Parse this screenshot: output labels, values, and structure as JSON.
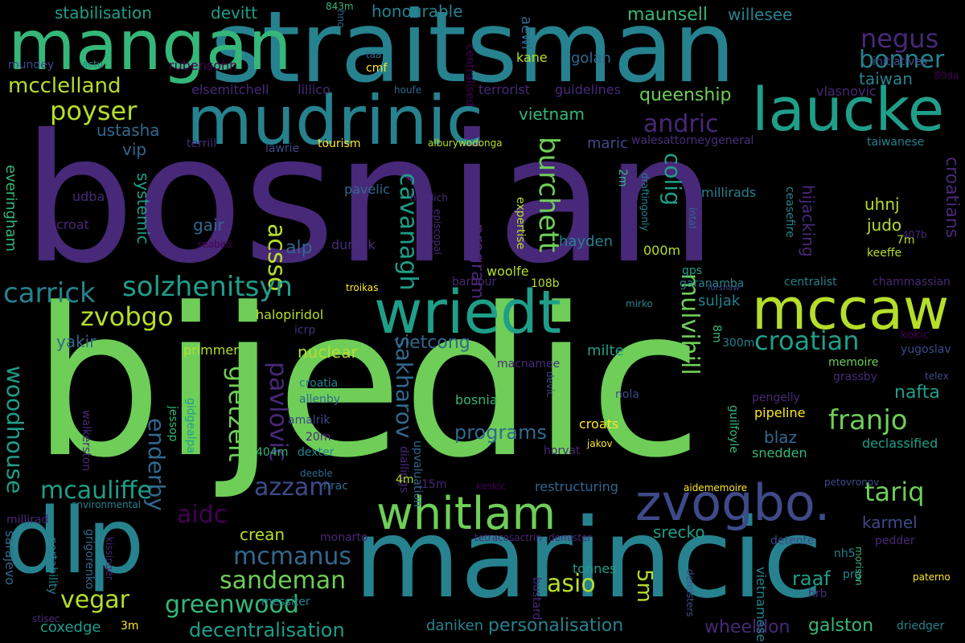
{
  "palette": {
    "c1": "#440154",
    "c2": "#482878",
    "c3": "#3e4a89",
    "c4": "#31688e",
    "c5": "#26828e",
    "c6": "#1f9e89",
    "c7": "#35b779",
    "c8": "#6ece58",
    "c9": "#b5de2b",
    "c10": "#fde725"
  },
  "words": {
    "bosnian": "bosnian",
    "bijedic": "bijedic",
    "marincic": "marincic",
    "straitsman": "straitsman",
    "mangan": "mangan",
    "mudrinic": "mudrinic",
    "laucke": "laucke",
    "dlp": "dlp",
    "wriedt": "wriedt",
    "mccaw": "mccaw",
    "whitlam": "whitlam",
    "zvogbo_big": "zvogbo.",
    "mcclelland": "mcclelland",
    "poyser": "poyser",
    "negus": "negus",
    "bonner": "bonner",
    "taiwan": "taiwan",
    "queenship": "queenship",
    "andric": "andric",
    "colig": "colig",
    "burchett": "burchett",
    "cavanagh": "cavanagh",
    "acsso": "acsso",
    "carrick": "carrick",
    "solzhenitsyn": "solzhenitsyn",
    "zvobgo": "zvobgo",
    "gietzelt": "gietzelt",
    "pavlovic": "pavlovic",
    "enderby": "enderby",
    "mulvihill": "mulvihill",
    "croatian": "croatian",
    "franjo": "franjo",
    "nafta": "nafta",
    "woodhouse": "woodhouse",
    "mcauliffe": "mcauliffe",
    "azzam": "azzam",
    "aidc": "aidc",
    "tariq": "tariq",
    "mcmanus": "mcmanus",
    "sandeman": "sandeman",
    "vegar": "vegar",
    "greenwood": "greenwood",
    "asio": "asio",
    "five_m": "5m",
    "decentralisation": "decentralisation",
    "personalisation": "personalisation",
    "galston": "galston",
    "wheeldon": "wheeldon",
    "raaf": "raaf",
    "sakharov": "sakharov",
    "vietcong": "vietcong",
    "programs": "programs",
    "program": "program",
    "vietnam": "vietnam",
    "ustasha": "ustasha",
    "maunsell": "maunsell",
    "willesee": "willesee",
    "honourable": "honourable",
    "stabilisation": "stabilisation",
    "devitt": "devitt",
    "aewl": "aewl",
    "cmf": "cmf",
    "kane": "kane",
    "golan": "golan",
    "rubensohn": "rubensohn",
    "mundey": "mundey",
    "actu": "actu",
    "elsemitchell": "elsemitchell",
    "lillico": "lillico",
    "houfe": "houfe",
    "terrorist": "terrorist",
    "guidelines": "guidelines",
    "centralised": "centralised",
    "initiatives": "initiatives",
    "vlasnovic": "vlasnovic",
    "taiwanese": "taiwanese",
    "walesattorneygeneral": "walesattorneygeneral",
    "maric": "maric",
    "tourism": "tourism",
    "lawrie": "lawrie",
    "terrill": "terrill",
    "alburywodonga": "alburywodonga",
    "vip": "vip",
    "systemic": "systemic",
    "everingham": "everingham",
    "gair": "gair",
    "alp": "alp",
    "pavelic": "pavelic",
    "hijedich": "hijedich",
    "udba": "udba",
    "croat": "croat",
    "seabed": "seabed",
    "durack": "durack",
    "episcopal": "episcopal",
    "naturalised": "naturalised",
    "expertise": "expertise",
    "hayden": "hayden",
    "draftingonly": "draftingonly",
    "millirads": "millirads",
    "ceasefire": "ceasefire",
    "intal": "intal",
    "hijacking": "hijacking",
    "croatians": "croatians",
    "uhnj": "uhnj",
    "judo": "judo",
    "keeffe": "keeffe",
    "sevenm": "7m",
    "b407": "407b",
    "two_m": "2m",
    "gps": "gps",
    "thousand_m": "000m",
    "woolfe": "woolfe",
    "barbour": "barbour",
    "b108": "108b",
    "garanamba": "garanamba",
    "centralist": "centralist",
    "chammassian": "chammassian",
    "suljak": "suljak",
    "troikas": "troikas",
    "halopiridol": "halopiridol",
    "mirko": "mirko",
    "forshaw": "forshaw",
    "icrp": "icrp",
    "yakir": "yakir",
    "nuclear": "nuclear",
    "primmer": "primmer",
    "milte": "milte",
    "macnamee": "macnamee",
    "kokic": "kokic",
    "yugoslav": "yugoslav",
    "memoire": "memoire",
    "grassby": "grassby",
    "telex": "telex",
    "croatia": "croatia",
    "allenby": "allenby",
    "bosnia": "bosnia",
    "nola": "nola",
    "devic": "devic",
    "jessop": "jessop",
    "gidgealpa": "gidgealpa",
    "amalrik": "amalrik",
    "twenty_m": "20m",
    "dexter": "dexter",
    "deeble": "deeble",
    "diallings": "diallings",
    "upvaluation": "upvaluation",
    "horvat": "horvat",
    "croats": "croats",
    "jakov": "jakov",
    "blaz": "blaz",
    "pengelly": "pengelly",
    "pipeline": "pipeline",
    "snedden": "snedden",
    "declassified": "declassified",
    "guilfoyle": "guilfoyle",
    "walkerston": "walkerston",
    "eight_m": "8m",
    "three_hundred_m": "300m",
    "m404": "404m",
    "four_m": "4m",
    "fifteen_m": "15m",
    "environmental": "environmental",
    "keskic": "keskic",
    "nrac": "nrac",
    "restructuring": "restructuring",
    "aidememoire": "aidememoire",
    "petovronov": "petovronov",
    "millirad": "millirad",
    "crean": "crean",
    "srecko": "srecko",
    "karmel": "karmel",
    "monarto": "monarto",
    "tetracosactrin": "tetracosactrin",
    "demister": "demister",
    "detente": "detente",
    "pedder": "pedder",
    "sarajevo": "sarajevo",
    "grigorenko": "grigorenko",
    "kissinger": "kissinger",
    "portability": "portability",
    "stisec": "stisec",
    "coxedge": "coxedge",
    "three_m": "3m",
    "messiter": "messiter",
    "daniken": "daniken",
    "tonnes": "tonnes",
    "bustard": "bustard",
    "vietnamese": "vietnamese",
    "demisters": "demisters",
    "aba2": "2aba",
    "hrb": "hrb",
    "nh5": "nh5",
    "prg": "prg",
    "morison": "morison",
    "paterno": "paterno",
    "driedger": "driedger",
    "hno": "hno",
    "m843": "843m",
    "taa": "taa",
    "da80": "80da"
  }
}
